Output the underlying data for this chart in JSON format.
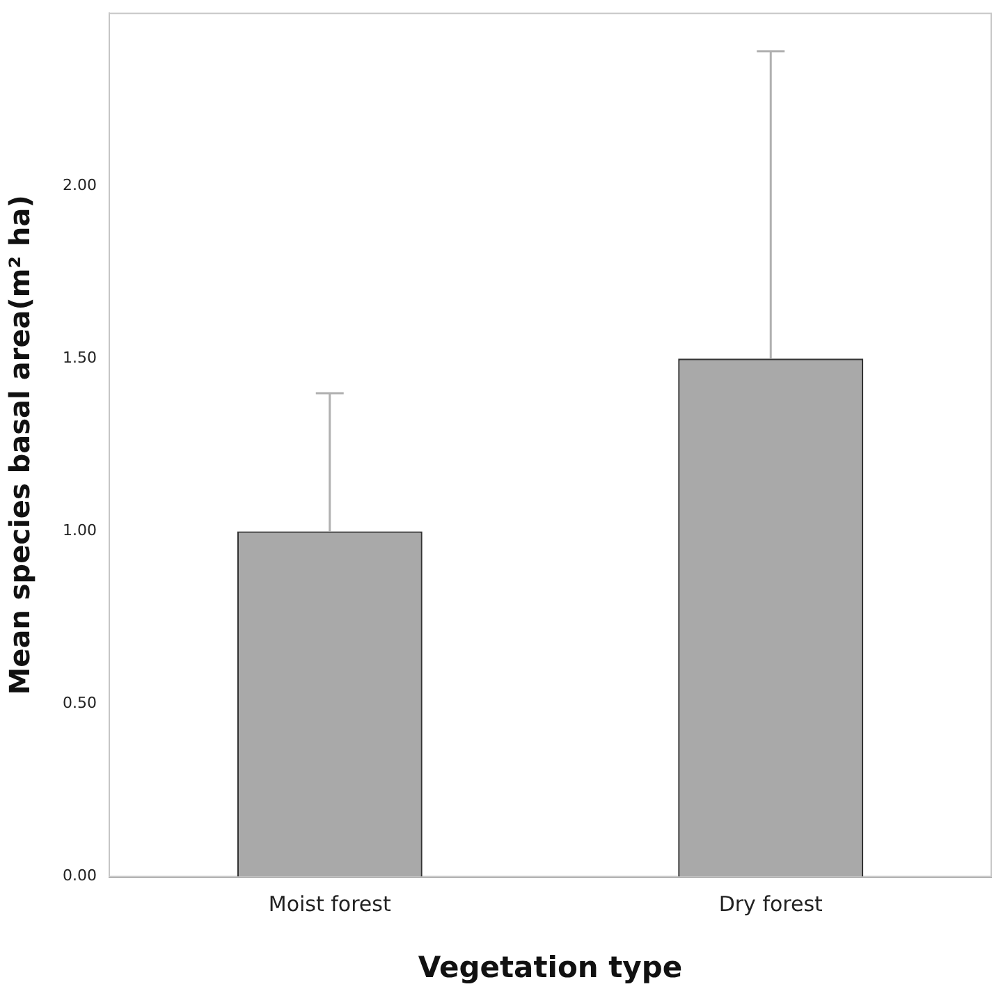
{
  "chart_data": {
    "type": "bar",
    "xlabel": "Vegetation type",
    "ylabel": "Mean species basal area(m² ha)",
    "categories": [
      "Moist forest",
      "Dry forest"
    ],
    "values": [
      1.0,
      1.5
    ],
    "errors": [
      [
        1.0,
        1.4
      ],
      [
        1.5,
        2.39
      ]
    ],
    "color": "#a9a9a9",
    "ylim": [
      0,
      2.5
    ],
    "yticks": [
      {
        "value": 0,
        "label": "0.00"
      },
      {
        "value": 0.5,
        "label": "0.50"
      },
      {
        "value": 1,
        "label": "1.00"
      },
      {
        "value": 1.5,
        "label": "1.50"
      },
      {
        "value": 2,
        "label": "2.00"
      }
    ],
    "grid": false,
    "legend": false
  }
}
